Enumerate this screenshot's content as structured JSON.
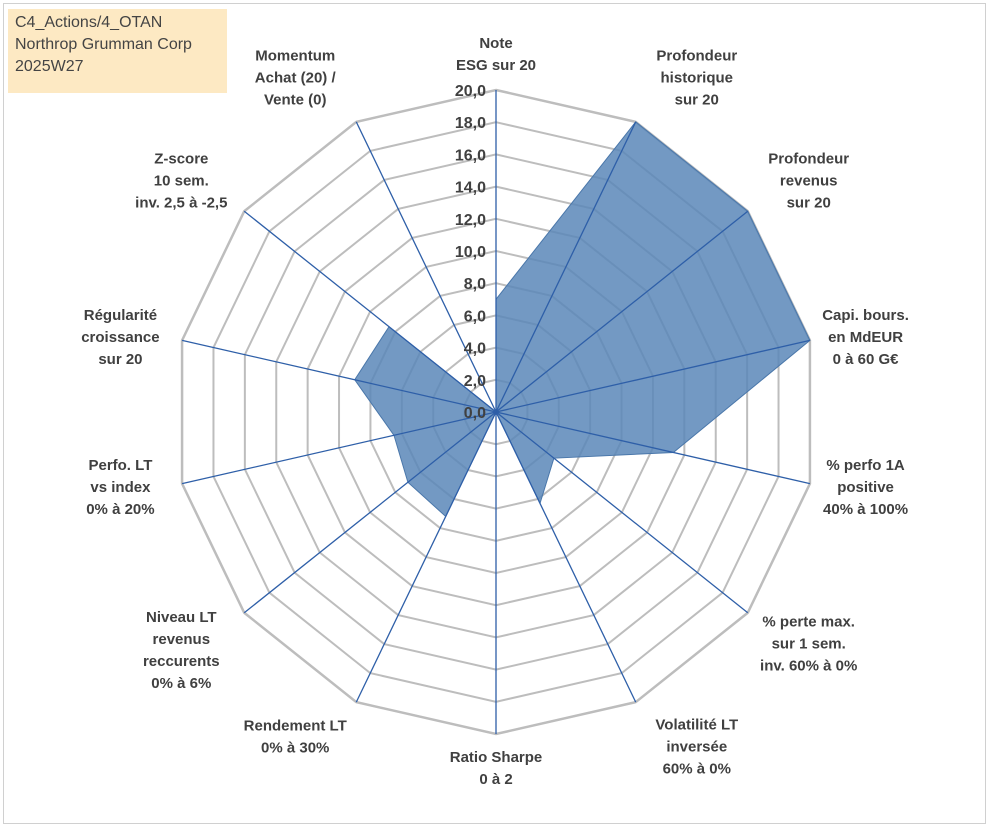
{
  "info_box": {
    "line1": "C4_Actions/4_OTAN",
    "line2": "Northrop Grumman Corp",
    "line3": "2025W27"
  },
  "colors": {
    "fill": "#5b87b8",
    "spoke": "#2e5fa8",
    "grid": "#bdbdbd",
    "info_bg": "#fde9c3"
  },
  "chart_data": {
    "type": "radar",
    "title": "",
    "rmin": 0,
    "rmax": 20,
    "tick_step": 2,
    "tick_labels": [
      "0,0",
      "2,0",
      "4,0",
      "6,0",
      "8,0",
      "10,0",
      "12,0",
      "14,0",
      "16,0",
      "18,0",
      "20,0"
    ],
    "grid": true,
    "axes": [
      {
        "lines": [
          "Note",
          "ESG sur 20"
        ],
        "value": 7.0
      },
      {
        "lines": [
          "Profondeur",
          "historique",
          "sur 20"
        ],
        "value": 20.0
      },
      {
        "lines": [
          "Profondeur",
          "revenus",
          "sur 20"
        ],
        "value": 20.0
      },
      {
        "lines": [
          "Capi. bours.",
          "en MdEUR",
          "0 à 60 G€"
        ],
        "value": 20.0
      },
      {
        "lines": [
          "% perfo 1A",
          "positive",
          "40% à 100%"
        ],
        "value": 11.3
      },
      {
        "lines": [
          "% perte max.",
          "sur 1 sem.",
          "inv. 60% à 0%"
        ],
        "value": 4.6
      },
      {
        "lines": [
          "Volatilité LT",
          "inversée",
          "60% à 0%"
        ],
        "value": 6.3
      },
      {
        "lines": [
          "Ratio Sharpe",
          "0 à 2"
        ],
        "value": 0.0
      },
      {
        "lines": [
          "Rendement LT",
          "0% à 30%"
        ],
        "value": 7.2
      },
      {
        "lines": [
          "Niveau LT",
          "revenus",
          "reccurents",
          "0% à 6%"
        ],
        "value": 7.0
      },
      {
        "lines": [
          "Perfo. LT",
          "vs index",
          "0% à 20%"
        ],
        "value": 6.5
      },
      {
        "lines": [
          "Régularité",
          "croissance",
          "sur 20"
        ],
        "value": 9.0
      },
      {
        "lines": [
          "Z-score",
          "10 sem.",
          "inv. 2,5 à -2,5"
        ],
        "value": 8.5
      },
      {
        "lines": [
          "Momentum",
          "Achat (20) /",
          "Vente (0)"
        ],
        "value": 0.0
      }
    ]
  }
}
